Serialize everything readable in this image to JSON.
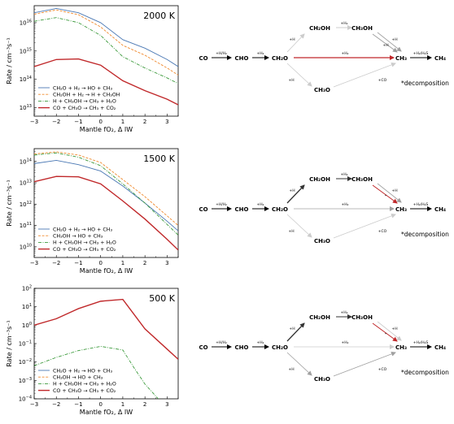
{
  "colors": {
    "blue": "#4a78b4",
    "orange": "#f08a2e",
    "green": "#3c9a3c",
    "red": "#c0282a",
    "gray": "#a0a0a0",
    "lightgray": "#cccccc",
    "dark": "#333333"
  },
  "chart_data": [
    {
      "type": "line",
      "annotation": "2000 K",
      "xlabel": "Mantle fO₂, Δ IW",
      "ylabel": "Rate / cm⁻³s⁻¹",
      "xlim": [
        -3,
        3.5
      ],
      "ylim_log10": [
        12.7,
        16.6
      ],
      "y_scale": "log",
      "grid": false,
      "legend_position": "lower-left",
      "x_ticks": [
        "−3",
        "−2",
        "−1",
        "0",
        "1",
        "2",
        "3"
      ],
      "y_ticks": [
        {
          "exp": 13,
          "label": "10",
          "sup": "13"
        },
        {
          "exp": 14,
          "label": "10",
          "sup": "14"
        },
        {
          "exp": 15,
          "label": "10",
          "sup": "15"
        },
        {
          "exp": 16,
          "label": "10",
          "sup": "16"
        }
      ],
      "x": [
        -3,
        -2,
        -1,
        0,
        1,
        2,
        3,
        3.5
      ],
      "series": [
        {
          "name": "CH₂O + H₂ → HO + CH₃",
          "color_key": "blue",
          "dash": "solid",
          "log10_values": [
            16.35,
            16.5,
            16.35,
            16.0,
            15.4,
            15.1,
            14.7,
            14.45
          ]
        },
        {
          "name": "CH₂OH + H₂ → H + CH₃OH",
          "color_key": "orange",
          "dash": "dashed",
          "log10_values": [
            16.3,
            16.45,
            16.28,
            15.85,
            15.2,
            14.85,
            14.4,
            14.15
          ]
        },
        {
          "name": "H + CH₃OH → CH₃ + H₂O",
          "color_key": "green",
          "dash": "dashdot",
          "log10_values": [
            16.05,
            16.18,
            16.0,
            15.55,
            14.8,
            14.4,
            14.05,
            13.85
          ]
        },
        {
          "name": "CO + CH₃O → CH₃ + CO₂",
          "color_key": "red",
          "dash": "solid",
          "log10_values": [
            14.45,
            14.7,
            14.72,
            14.5,
            13.95,
            13.6,
            13.3,
            13.1
          ]
        }
      ]
    },
    {
      "type": "line",
      "annotation": "1500 K",
      "xlabel": "Mantle fO₂, Δ IW",
      "ylabel": "Rate / cm⁻³s⁻¹",
      "xlim": [
        -3,
        3.5
      ],
      "ylim_log10": [
        9.5,
        14.6
      ],
      "y_scale": "log",
      "grid": false,
      "legend_position": "lower-left",
      "x_ticks": [
        "−3",
        "−2",
        "−1",
        "0",
        "1",
        "2",
        "3"
      ],
      "y_ticks": [
        {
          "exp": 10,
          "label": "10",
          "sup": "10"
        },
        {
          "exp": 11,
          "label": "10",
          "sup": "11"
        },
        {
          "exp": 12,
          "label": "10",
          "sup": "12"
        },
        {
          "exp": 13,
          "label": "10",
          "sup": "13"
        },
        {
          "exp": 14,
          "label": "10",
          "sup": "14"
        }
      ],
      "x": [
        -3,
        -2,
        -1,
        0,
        1,
        2,
        3,
        3.5
      ],
      "series": [
        {
          "name": "CH₂O + H₂ → HO + CH₃",
          "color_key": "blue",
          "dash": "solid",
          "log10_values": [
            13.9,
            14.05,
            13.85,
            13.55,
            12.85,
            12.05,
            11.2,
            10.75
          ]
        },
        {
          "name": "CH₃OH → HO + CH₃",
          "color_key": "orange",
          "dash": "dashed",
          "log10_values": [
            14.35,
            14.45,
            14.3,
            13.95,
            13.15,
            12.35,
            11.45,
            11.0
          ]
        },
        {
          "name": "H + CH₃OH → CH₃ + H₂O",
          "color_key": "green",
          "dash": "dashdot",
          "log10_values": [
            14.3,
            14.4,
            14.2,
            13.8,
            12.95,
            12.05,
            11.05,
            10.55
          ]
        },
        {
          "name": "CO + CH₃O → CH₃ + CO₂",
          "color_key": "red",
          "dash": "solid",
          "log10_values": [
            13.05,
            13.3,
            13.28,
            12.95,
            12.15,
            11.3,
            10.35,
            9.85
          ]
        }
      ]
    },
    {
      "type": "line",
      "annotation": "500 K",
      "xlabel": "Mantle fO₂, Δ IW",
      "ylabel": "Rate / cm⁻³s⁻¹",
      "xlim": [
        -3,
        3.5
      ],
      "ylim_log10": [
        -4,
        2
      ],
      "y_scale": "log",
      "grid": false,
      "legend_position": "lower-left",
      "x_ticks": [
        "−3",
        "−2",
        "−1",
        "0",
        "1",
        "2",
        "3"
      ],
      "y_ticks": [
        {
          "exp": -4,
          "label": "10",
          "sup": "−4"
        },
        {
          "exp": -3,
          "label": "10",
          "sup": "−3"
        },
        {
          "exp": -2,
          "label": "10",
          "sup": "−2"
        },
        {
          "exp": -1,
          "label": "10",
          "sup": "−1"
        },
        {
          "exp": 0,
          "label": "10",
          "sup": "0"
        },
        {
          "exp": 1,
          "label": "10",
          "sup": "1"
        },
        {
          "exp": 2,
          "label": "10",
          "sup": "2"
        }
      ],
      "series": [
        {
          "name": "CH₂O + H₂ → HO + CH₃",
          "color_key": "blue",
          "dash": "solid",
          "x": [],
          "log10_values": []
        },
        {
          "name": "CH₃OH → HO + CH₃",
          "color_key": "orange",
          "dash": "dashed",
          "x": [],
          "log10_values": []
        },
        {
          "name": "H + CH₃OH → CH₃ + H₂O",
          "color_key": "green",
          "dash": "dashdot",
          "x": [
            -3,
            -2,
            -1,
            0,
            1,
            1.5,
            2,
            2.6
          ],
          "log10_values": [
            -2.2,
            -1.75,
            -1.38,
            -1.15,
            -1.35,
            -2.3,
            -3.2,
            -4.0
          ]
        },
        {
          "name": "CO + CH₃O → CH₃ + CO₂",
          "color_key": "red",
          "dash": "solid",
          "x": [
            -3,
            -2,
            -1,
            0,
            1,
            2,
            3,
            3.5
          ],
          "log10_values": [
            0.0,
            0.35,
            0.9,
            1.3,
            1.4,
            -0.2,
            -1.3,
            -1.85
          ]
        }
      ]
    }
  ],
  "diagrams": [
    {
      "nodes": {
        "CO": "CO",
        "CHO": "CHO",
        "CH2O": "CH₂O",
        "CH2OH": "CH₂OH",
        "CH3OH": "CH₃OH",
        "CH3": "CH₃",
        "CH4": "CH₄",
        "CH3O": "CH₃O"
      },
      "labels": {
        "co_cho": "+H/H₂",
        "cho_ch2o": "+H₂",
        "ch2o_ch2oh": "+H",
        "ch2oh_ch3oh": "+H₂",
        "ch3oh_ch3_a": "+H",
        "ch3oh_ch3_b": "+H",
        "ch2o_ch3": "+H₂",
        "ch2o_ch3o": "+H",
        "ch3o_ch3": "+CO",
        "ch3_ch4": "+H₂/H₂S"
      },
      "note": "*decomposition"
    },
    {
      "nodes": {
        "CO": "CO",
        "CHO": "CHO",
        "CH2O": "CH₂O",
        "CH2OH": "CH₂OH",
        "CH3OH": "CH₃OH",
        "CH3": "CH₃",
        "CH4": "CH₄",
        "CH3O": "CH₃O"
      },
      "labels": {
        "co_cho": "+H/H₂",
        "cho_ch2o": "+H₂",
        "ch2o_ch2oh": "+H",
        "ch2oh_ch3oh": "+H₂",
        "ch3oh_ch3_a": "+H",
        "ch3oh_ch3_b": "*",
        "ch2o_ch3": "+H₂",
        "ch2o_ch3o": "+H",
        "ch3o_ch3": "+CO",
        "ch3_ch4": "+H₂/H₂S"
      },
      "note": "*decomposition"
    },
    {
      "nodes": {
        "CO": "CO",
        "CHO": "CHO",
        "CH2O": "CH₂O",
        "CH2OH": "CH₂OH",
        "CH3OH": "CH₃OH",
        "CH3": "CH₃",
        "CH4": "CH₄",
        "CH3O": "CH₃O"
      },
      "labels": {
        "co_cho": "+H/H₂",
        "cho_ch2o": "+H₂",
        "ch2o_ch2oh": "+H",
        "ch2oh_ch3oh": "+H₂",
        "ch3oh_ch3_a": "+H",
        "ch3oh_ch3_b": "*",
        "ch2o_ch3": "+H₂",
        "ch2o_ch3o": "+H",
        "ch3o_ch3": "+CO",
        "ch3_ch4": "+H₂/H₂S"
      },
      "note": "*decomposition"
    }
  ]
}
